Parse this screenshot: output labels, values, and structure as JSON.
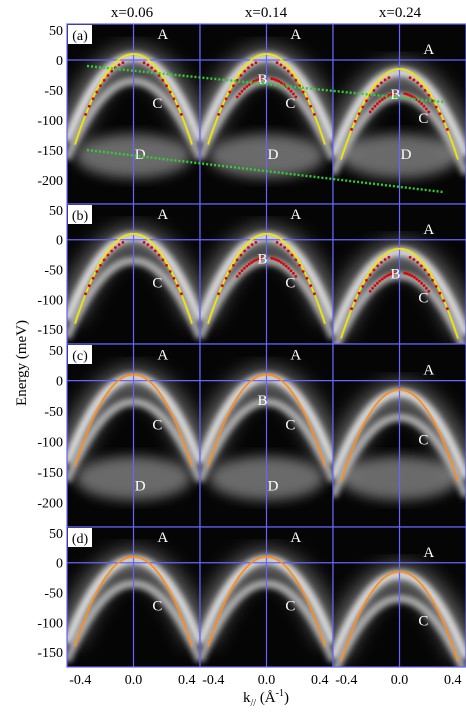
{
  "columns": [
    "x=0.06",
    "x=0.14",
    "x=0.24"
  ],
  "rows": [
    "(a)",
    "(b)",
    "(c)",
    "(d)"
  ],
  "y_axis_title": "Energy (meV)",
  "x_axis_title": "k// (Å⁻¹)",
  "x_axis_title_main": "k",
  "x_axis_title_sub": "//",
  "x_axis_title_unit_open": "  (Å",
  "x_axis_title_unit_exp": "-1",
  "x_axis_title_unit_close": ")",
  "row_y_ticks": [
    [
      "50",
      "0",
      "-50",
      "-100",
      "-150",
      "-200"
    ],
    [
      "50",
      "0",
      "-50",
      "-100",
      "-150"
    ],
    [
      "50",
      "0",
      "-50",
      "-100",
      "-150",
      "-200"
    ],
    [
      "50",
      "0",
      "-50",
      "-100",
      "-150"
    ]
  ],
  "x_ticks": [
    "-0.4",
    "0.0",
    "0.4"
  ],
  "band_labels": {
    "A": "A",
    "B": "B",
    "C": "C",
    "D": "D"
  },
  "panel_band_labels": [
    [
      [
        "A",
        "C",
        "D"
      ],
      [
        "A",
        "B",
        "C",
        "D"
      ],
      [
        "A",
        "B",
        "C",
        "D"
      ]
    ],
    [
      [
        "A",
        "C"
      ],
      [
        "A",
        "B",
        "C"
      ],
      [
        "A",
        "B",
        "C"
      ]
    ],
    [
      [
        "A",
        "C",
        "D"
      ],
      [
        "A",
        "B",
        "C",
        "D"
      ],
      [
        "A",
        "C"
      ]
    ],
    [
      [
        "A",
        "C"
      ],
      [
        "A",
        "C"
      ],
      [
        "A",
        "C"
      ]
    ]
  ],
  "colors": {
    "fit_curve_rows_ab": "#f2e600",
    "fit_curve_rows_cd": "#ff8c1a",
    "mdc_peaks": "#e00000",
    "guide_lines": "#33cc33",
    "grid_lines": "#6666ff",
    "panel_background": "#050505",
    "band_intensity": "#e8e8e8"
  },
  "chart_data": {
    "type": "heatmap",
    "description_kind": "ARPES energy-momentum intensity maps",
    "columns": [
      "x=0.06",
      "x=0.14",
      "x=0.24"
    ],
    "row_labels": [
      "(a)",
      "(b)",
      "(c)",
      "(d)"
    ],
    "xlabel": "k// (Å⁻¹)",
    "ylabel": "Energy (meV)",
    "xlim": [
      -0.5,
      0.5
    ],
    "x_ticks": [
      -0.4,
      0.0,
      0.4
    ],
    "row_ylim": [
      [
        -240,
        60
      ],
      [
        -175,
        60
      ],
      [
        -240,
        60
      ],
      [
        -175,
        60
      ]
    ],
    "y_ticks": [
      50,
      0,
      -50,
      -100,
      -150,
      -200
    ],
    "fit_parabola_top_meV": [
      10,
      10,
      -15
    ],
    "guide_line_upper": {
      "x": [
        -0.5,
        1.25
      ],
      "energy_meV": [
        -10,
        -70
      ]
    },
    "guide_line_lower": {
      "x": [
        -0.5,
        1.25
      ],
      "energy_meV": [
        -150,
        -220
      ]
    }
  }
}
